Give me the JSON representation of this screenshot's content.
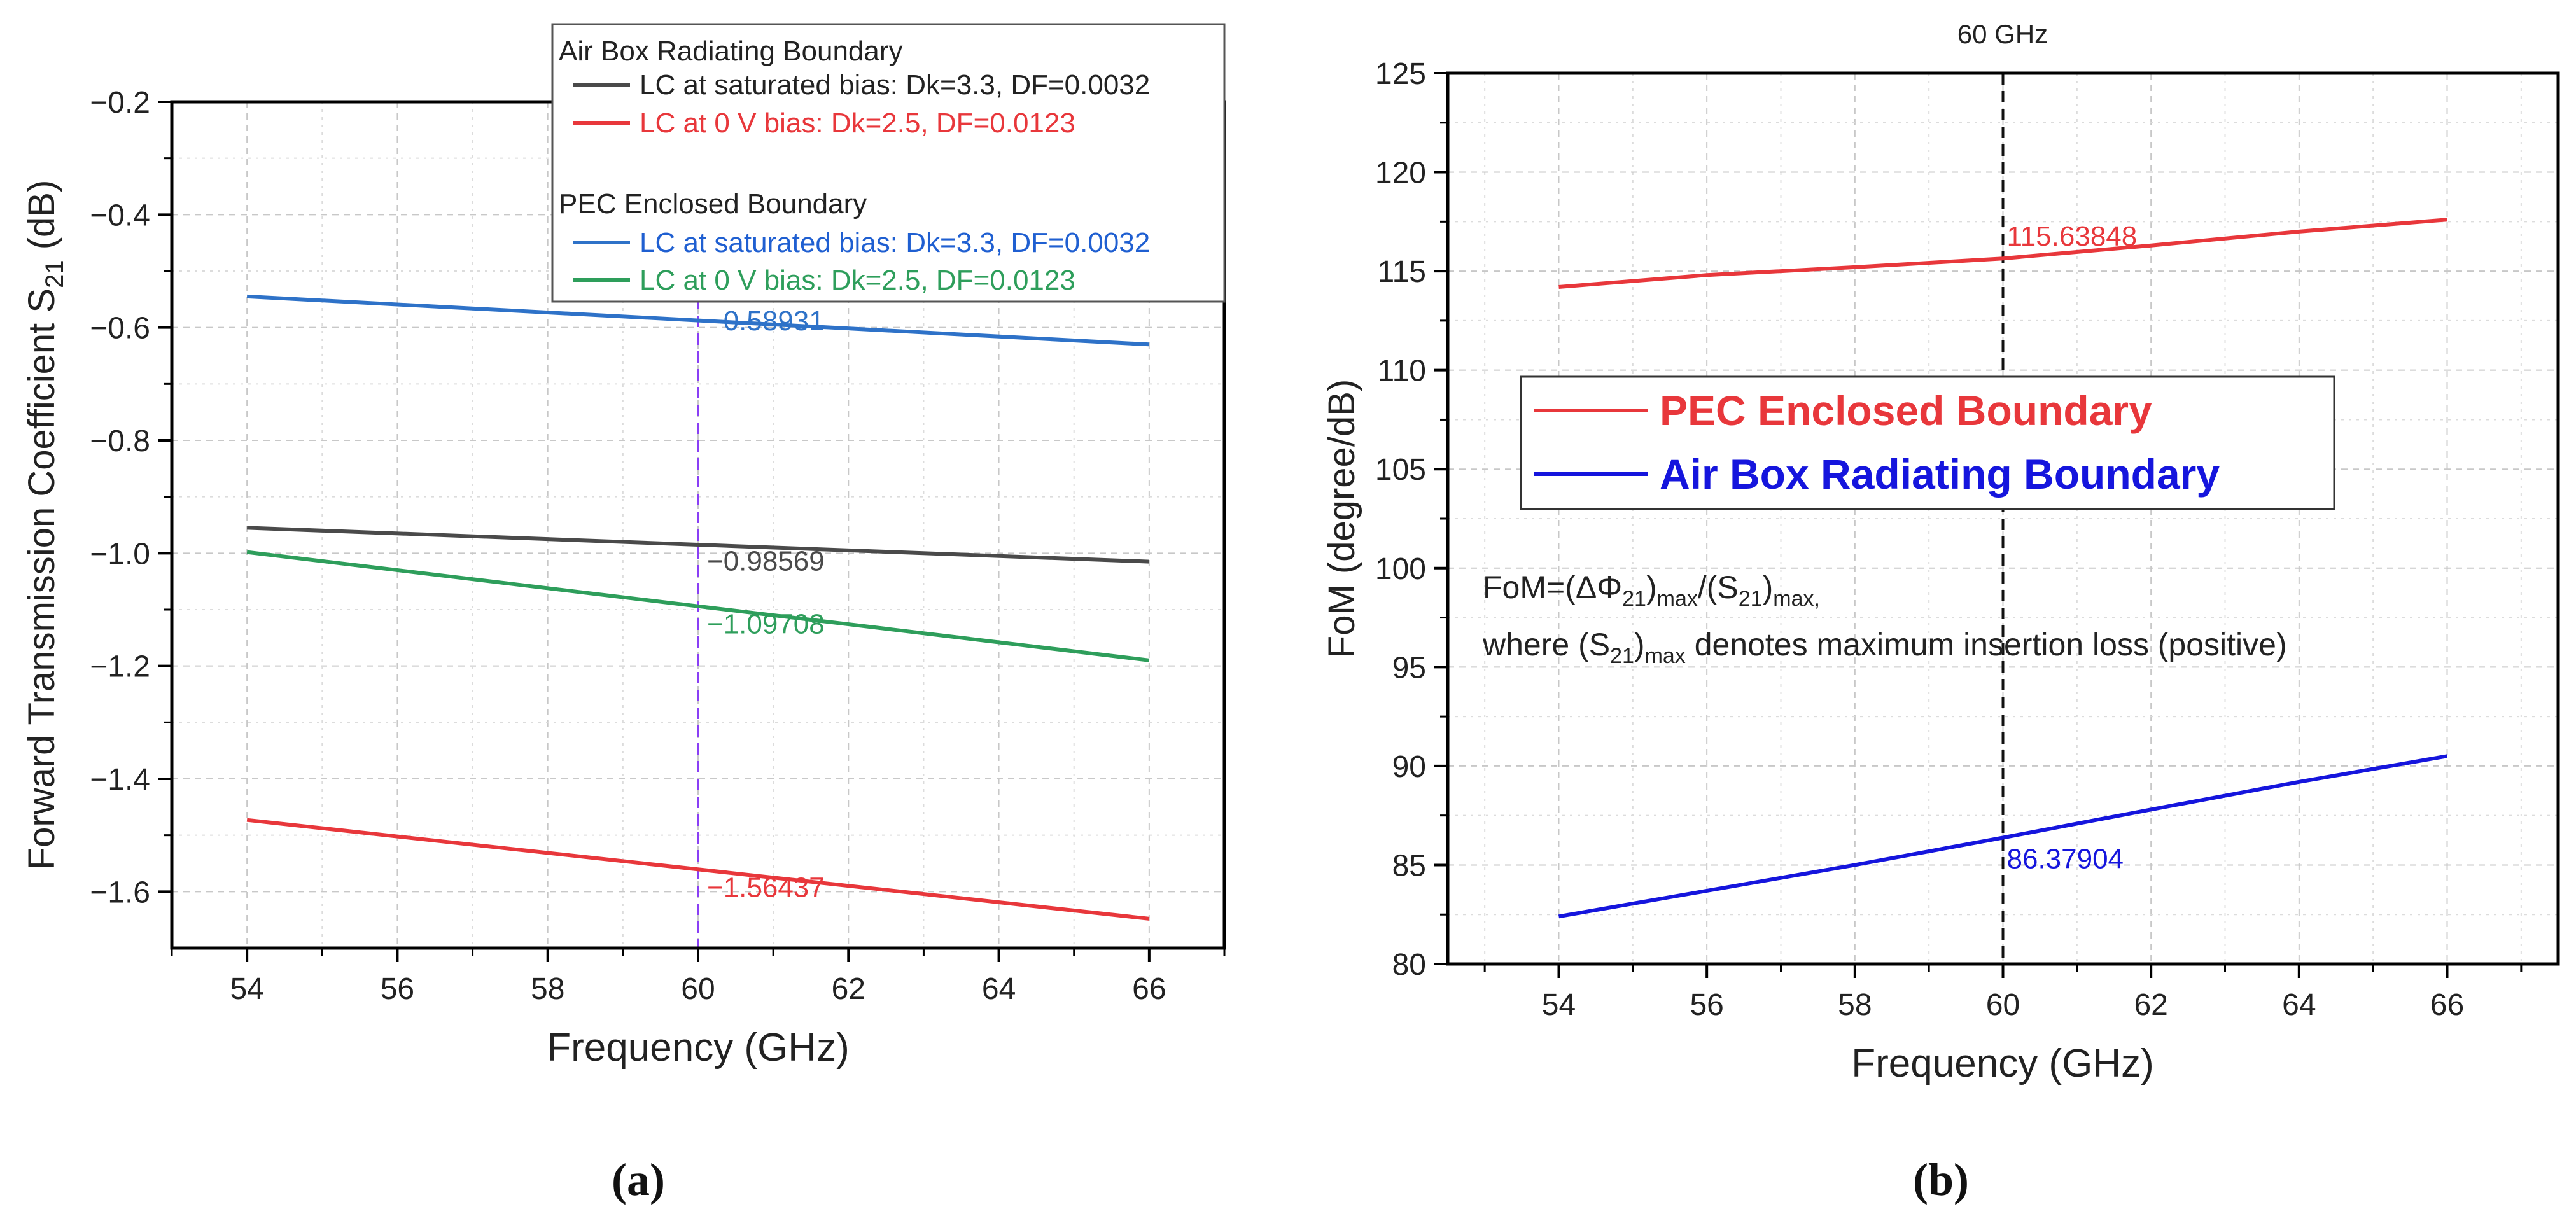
{
  "chart_data": [
    {
      "type": "line",
      "panel_label": "(a)",
      "xlabel": "Frequency (GHz)",
      "ylabel": {
        "main": "Forward Transmission Coefficient S",
        "sub": "21",
        "tail": " (dB)"
      },
      "xlim": [
        53,
        67
      ],
      "ylim": [
        -1.7,
        -0.2
      ],
      "x_ticks": [
        54,
        56,
        58,
        60,
        62,
        64,
        66
      ],
      "y_ticks": [
        -1.6,
        -1.4,
        -1.2,
        -1.0,
        -0.8,
        -0.6,
        -0.4,
        -0.2
      ],
      "x_tick_labels": [
        "54",
        "56",
        "58",
        "60",
        "62",
        "64",
        "66"
      ],
      "y_tick_labels": [
        "−1.6",
        "−1.4",
        "−1.2",
        "−1.0",
        "−0.8",
        "−0.6",
        "−0.4",
        "−0.2"
      ],
      "grid": true,
      "legend_position": "top-right",
      "legend_groups": [
        {
          "title": "Air Box Radiating Boundary",
          "entries": [
            0,
            1
          ]
        },
        {
          "title": "PEC Enclosed Boundary",
          "entries": [
            2,
            3
          ]
        }
      ],
      "series": [
        {
          "name": "LC at saturated bias: Dk=3.3, DF=0.0032",
          "color": "#4a4a4a",
          "x": [
            54,
            66
          ],
          "y": [
            -0.955,
            -1.015
          ]
        },
        {
          "name": "LC at 0 V bias: Dk=2.5, DF=0.0123",
          "color": "#e8373b",
          "x": [
            54,
            66
          ],
          "y": [
            -1.473,
            -1.648
          ]
        },
        {
          "name": "LC at saturated bias: Dk=3.3, DF=0.0032",
          "color": "#2e72c8",
          "x": [
            54,
            66
          ],
          "y": [
            -0.545,
            -0.63
          ]
        },
        {
          "name": "LC at 0 V bias: Dk=2.5, DF=0.0123",
          "color": "#2e9e5b",
          "x": [
            54,
            66
          ],
          "y": [
            -0.998,
            -1.19
          ]
        }
      ],
      "vline": {
        "x": 60,
        "color": "#8a3ff5"
      },
      "annotations": [
        {
          "text": "−0.58931",
          "x": 60,
          "y": -0.58931,
          "color": "#2e72c8"
        },
        {
          "text": "−0.98569",
          "x": 60,
          "y": -0.98569,
          "color": "#4a4a4a"
        },
        {
          "text": "−1.09708",
          "x": 60,
          "y": -1.09708,
          "color": "#2e9e5b"
        },
        {
          "text": "−1.56437",
          "x": 60,
          "y": -1.56437,
          "color": "#e8373b"
        }
      ]
    },
    {
      "type": "line",
      "panel_label": "(b)",
      "title": "60 GHz",
      "xlabel": "Frequency (GHz)",
      "ylabel": "FoM (degree/dB)",
      "xlim": [
        52.5,
        67.5
      ],
      "ylim": [
        80,
        125
      ],
      "x_ticks": [
        54,
        56,
        58,
        60,
        62,
        64,
        66
      ],
      "y_ticks": [
        80,
        85,
        90,
        95,
        100,
        105,
        110,
        115,
        120,
        125
      ],
      "x_tick_labels": [
        "54",
        "56",
        "58",
        "60",
        "62",
        "64",
        "66"
      ],
      "y_tick_labels": [
        "80",
        "85",
        "90",
        "95",
        "100",
        "105",
        "110",
        "115",
        "120",
        "125"
      ],
      "grid": true,
      "legend_position": "center-left",
      "series": [
        {
          "name": "PEC Enclosed Boundary",
          "color": "#e8373b",
          "x": [
            54,
            56,
            58,
            60,
            62,
            64,
            66
          ],
          "y": [
            114.2,
            114.8,
            115.2,
            115.64,
            116.3,
            117.0,
            117.6
          ]
        },
        {
          "name": "Air Box Radiating Boundary",
          "color": "#1515dd",
          "x": [
            54,
            56,
            58,
            60,
            62,
            64,
            66
          ],
          "y": [
            82.4,
            83.7,
            85.0,
            86.38,
            87.8,
            89.2,
            90.5
          ]
        }
      ],
      "vline": {
        "x": 60,
        "color": "#111111"
      },
      "annotations": [
        {
          "text": "115.63848",
          "x": 60,
          "y": 115.63848,
          "color": "#e8373b"
        },
        {
          "text": "86.37904",
          "x": 60,
          "y": 86.37904,
          "color": "#1515dd"
        }
      ],
      "formula": {
        "line1": [
          "FoM=(ΔΦ",
          "21",
          ")",
          "max",
          "/(S",
          "21",
          ")",
          "max,"
        ],
        "line2": [
          "where (S",
          "21",
          ")",
          "max",
          " denotes maximum insertion loss (positive)"
        ]
      }
    }
  ]
}
